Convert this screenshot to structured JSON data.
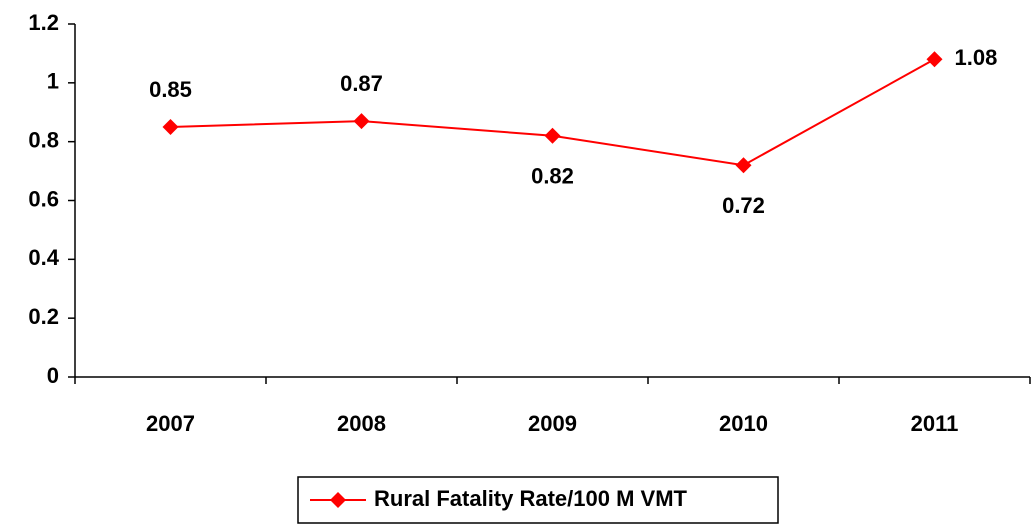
{
  "chart_data": {
    "type": "line",
    "categories": [
      "2007",
      "2008",
      "2009",
      "2010",
      "2011"
    ],
    "series": [
      {
        "name": "Rural Fatality Rate/100 M VMT",
        "color": "#ff0000",
        "values": [
          0.85,
          0.87,
          0.82,
          0.72,
          1.08
        ]
      }
    ],
    "ylim": [
      0,
      1.2
    ],
    "yticks": [
      0,
      0.2,
      0.4,
      0.6,
      0.8,
      1,
      1.2
    ],
    "grid": false,
    "legend": "bottom"
  }
}
